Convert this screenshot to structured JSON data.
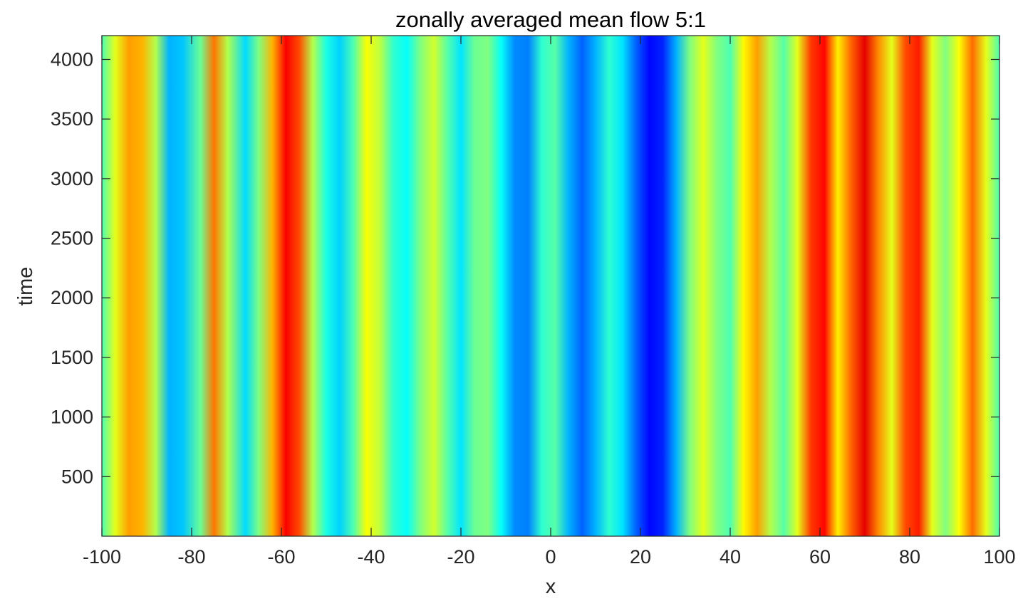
{
  "chart_data": {
    "type": "heatmap",
    "title": "zonally averaged mean flow  5:1",
    "xlabel": "x",
    "ylabel": "time",
    "xlim": [
      -100,
      100
    ],
    "ylim": [
      0,
      4200
    ],
    "x_ticks": [
      -100,
      -80,
      -60,
      -40,
      -20,
      0,
      20,
      40,
      60,
      80,
      100
    ],
    "y_ticks": [
      500,
      1000,
      1500,
      2000,
      2500,
      3000,
      3500,
      4000
    ],
    "x_tick_labels": [
      "-100",
      "-80",
      "-60",
      "-40",
      "-20",
      "0",
      "20",
      "40",
      "60",
      "80",
      "100"
    ],
    "y_tick_labels": [
      "500",
      "1000",
      "1500",
      "2000",
      "2500",
      "3000",
      "3500",
      "4000"
    ],
    "colormap": "jet",
    "color_range": [
      0,
      1
    ],
    "grid": false,
    "colorbar": false,
    "x": [
      -100,
      -97,
      -94,
      -91,
      -88,
      -85,
      -82,
      -78,
      -75,
      -72,
      -68,
      -65,
      -62,
      -59,
      -56,
      -53,
      -50,
      -47,
      -44,
      -41,
      -38,
      -35,
      -32,
      -29,
      -26,
      -23,
      -20,
      -17,
      -14,
      -11,
      -8,
      -5,
      -2,
      1,
      4,
      7,
      10,
      13,
      16,
      19,
      22,
      25,
      28,
      31,
      34,
      37,
      40,
      43,
      46,
      49,
      52,
      55,
      58,
      61,
      64,
      67,
      70,
      73,
      76,
      79,
      82,
      85,
      88,
      91,
      94,
      97,
      100
    ],
    "profile_values": [
      0.45,
      0.6,
      0.72,
      0.7,
      0.55,
      0.3,
      0.32,
      0.48,
      0.76,
      0.55,
      0.34,
      0.5,
      0.7,
      0.88,
      0.8,
      0.55,
      0.4,
      0.33,
      0.45,
      0.62,
      0.56,
      0.42,
      0.38,
      0.5,
      0.58,
      0.46,
      0.35,
      0.48,
      0.5,
      0.38,
      0.26,
      0.25,
      0.42,
      0.46,
      0.3,
      0.22,
      0.3,
      0.42,
      0.35,
      0.22,
      0.13,
      0.16,
      0.3,
      0.5,
      0.6,
      0.5,
      0.45,
      0.63,
      0.72,
      0.55,
      0.46,
      0.6,
      0.82,
      0.87,
      0.64,
      0.78,
      0.9,
      0.74,
      0.6,
      0.8,
      0.85,
      0.6,
      0.5,
      0.62,
      0.77,
      0.6,
      0.45
    ]
  }
}
